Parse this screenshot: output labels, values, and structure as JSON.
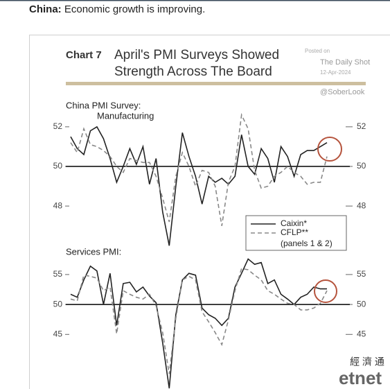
{
  "page": {
    "headline_bold": "China:",
    "headline": "Economic growth is improving."
  },
  "figure": {
    "label": "Chart 7",
    "title": [
      "April's PMI Surveys Showed",
      "Strength Across The Board"
    ],
    "posted_on": "Posted on",
    "source": "The Daily Shot",
    "date": "12-Apr-2024",
    "handle": "@SoberLook",
    "legend_note": "(panels 1 & 2)"
  },
  "watermark": {
    "cn": "經 濟 通",
    "en": "etnet"
  },
  "chart_data": [
    {
      "type": "line",
      "title": [
        "China PMI Survey:",
        "Manufacturing"
      ],
      "ylim": [
        45.8,
        52.8
      ],
      "yticks": [
        48,
        50,
        52
      ],
      "hline": 50,
      "series": [
        {
          "name": "Caixin*",
          "color": "#222222",
          "dashed": false,
          "values": [
            51.5,
            50.9,
            50.6,
            51.8,
            52.0,
            51.4,
            50.4,
            49.2,
            50.0,
            50.9,
            50.1,
            51.0,
            49.1,
            50.4,
            47.7,
            46.0,
            49.0,
            51.7,
            50.5,
            49.5,
            48.1,
            49.5,
            49.2,
            49.4,
            49.1,
            49.5,
            51.6,
            50.0,
            49.6,
            50.9,
            50.4,
            49.2,
            51.0,
            50.5,
            49.5,
            50.6,
            50.8,
            50.8,
            51.0,
            51.2
          ]
        },
        {
          "name": "CFLP**",
          "color": "#888888",
          "dashed": true,
          "values": [
            51.2,
            50.7,
            51.9,
            51.1,
            51.0,
            50.8,
            50.5,
            50.0,
            49.7,
            50.4,
            50.3,
            50.2,
            50.2,
            49.5,
            48.4,
            47.2,
            49.5,
            50.7,
            50.0,
            49.0,
            49.8,
            49.7,
            49.0,
            47.0,
            49.2,
            50.0,
            52.6,
            51.9,
            49.8,
            48.9,
            49.0,
            49.5,
            49.7,
            50.0,
            49.7,
            49.5,
            49.1,
            49.2,
            49.2,
            50.5
          ]
        }
      ]
    },
    {
      "type": "line",
      "title": [
        "Services PMI:"
      ],
      "ylim": [
        36,
        58
      ],
      "yticks": [
        45,
        50,
        55
      ],
      "hline": 50,
      "series": [
        {
          "color": "#222222",
          "dashed": false,
          "values": [
            51.7,
            51.2,
            54.1,
            56.4,
            55.6,
            50.0,
            55.2,
            46.5,
            53.5,
            53.7,
            52.1,
            52.9,
            51.4,
            50.3,
            43.6,
            36.0,
            48.3,
            54.1,
            55.2,
            54.9,
            49.4,
            48.3,
            47.7,
            46.5,
            47.7,
            52.9,
            55.2,
            57.6,
            56.7,
            57.0,
            53.5,
            54.1,
            51.7,
            50.9,
            50.0,
            51.2,
            51.7,
            52.9,
            52.6,
            52.6
          ]
        },
        {
          "color": "#888888",
          "dashed": true,
          "values": [
            50.9,
            50.6,
            54.9,
            54.7,
            54.4,
            52.3,
            52.9,
            45.1,
            52.3,
            51.7,
            51.2,
            50.9,
            51.7,
            49.8,
            45.3,
            38.4,
            47.7,
            54.1,
            54.7,
            54.1,
            48.8,
            47.1,
            45.3,
            43.3,
            47.4,
            52.3,
            56.0,
            55.8,
            54.9,
            54.1,
            52.3,
            51.7,
            50.9,
            50.2,
            50.0,
            49.1,
            49.1,
            49.4,
            50.2,
            52.3
          ]
        }
      ]
    }
  ]
}
